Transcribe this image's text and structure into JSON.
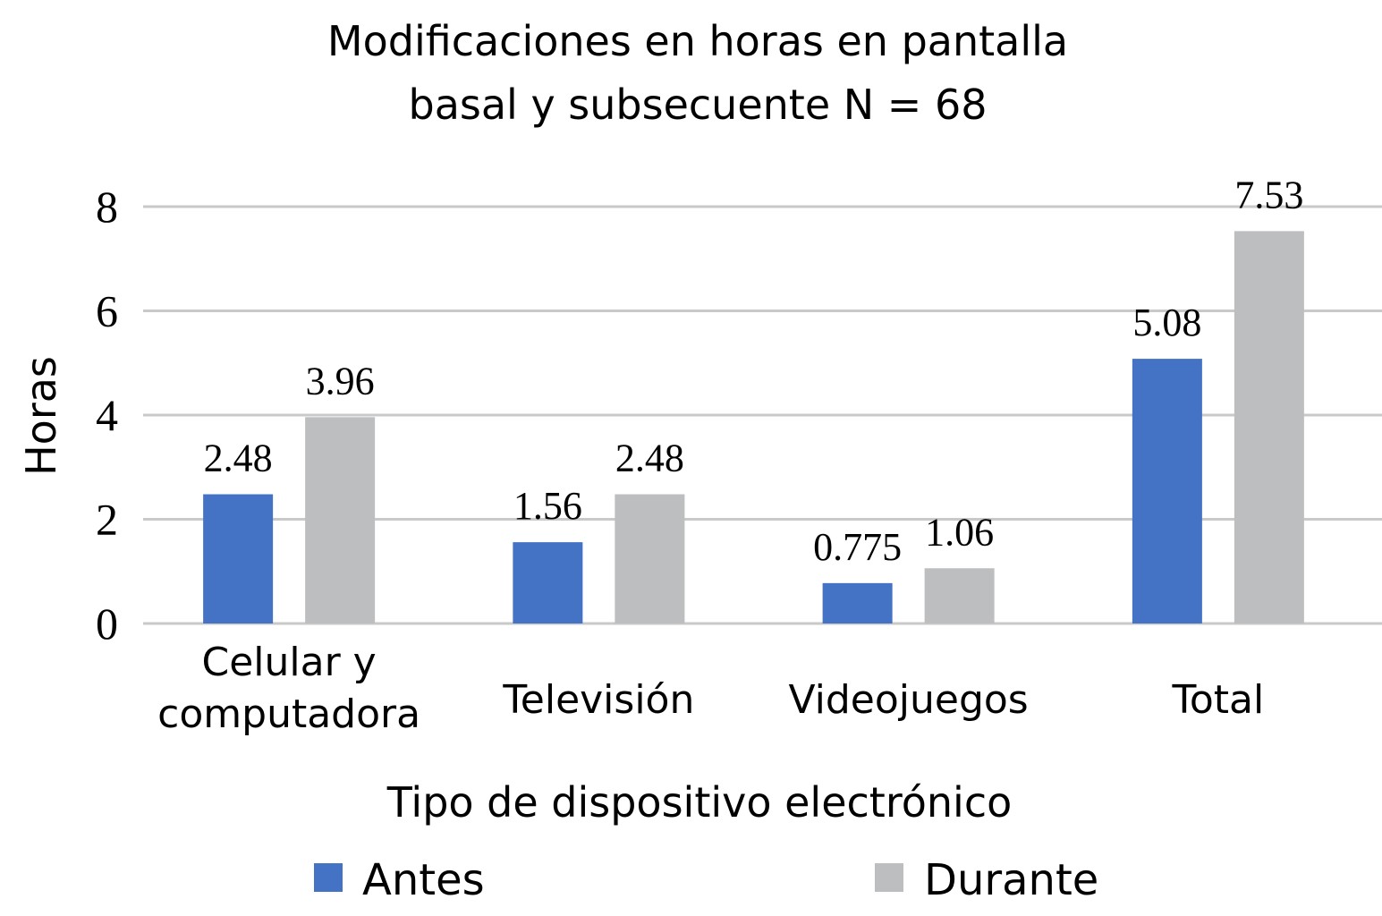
{
  "chart_data": {
    "type": "bar",
    "title": [
      "Modificaciones en horas en pantalla",
      "basal y subsecuente N = 68"
    ],
    "xlabel": "Tipo de dispositivo electrónico",
    "ylabel": "Horas",
    "ylim": [
      0,
      8
    ],
    "yticks": [
      0,
      2,
      4,
      6,
      8
    ],
    "grid": true,
    "legend_position": "bottom",
    "categories": [
      [
        "Celular y",
        "computadora"
      ],
      [
        "Televisión"
      ],
      [
        "Videojuegos"
      ],
      [
        "Total"
      ]
    ],
    "series": [
      {
        "name": "Antes",
        "color": "#4472C4",
        "values": [
          2.48,
          1.56,
          0.775,
          5.08
        ],
        "labels": [
          "2.48",
          "1.56",
          "0.775",
          "5.08"
        ]
      },
      {
        "name": "Durante",
        "color": "#BDBEC0",
        "values": [
          3.96,
          2.48,
          1.06,
          7.53
        ],
        "labels": [
          "3.96",
          "2.48",
          "1.06",
          "7.53"
        ]
      }
    ]
  }
}
